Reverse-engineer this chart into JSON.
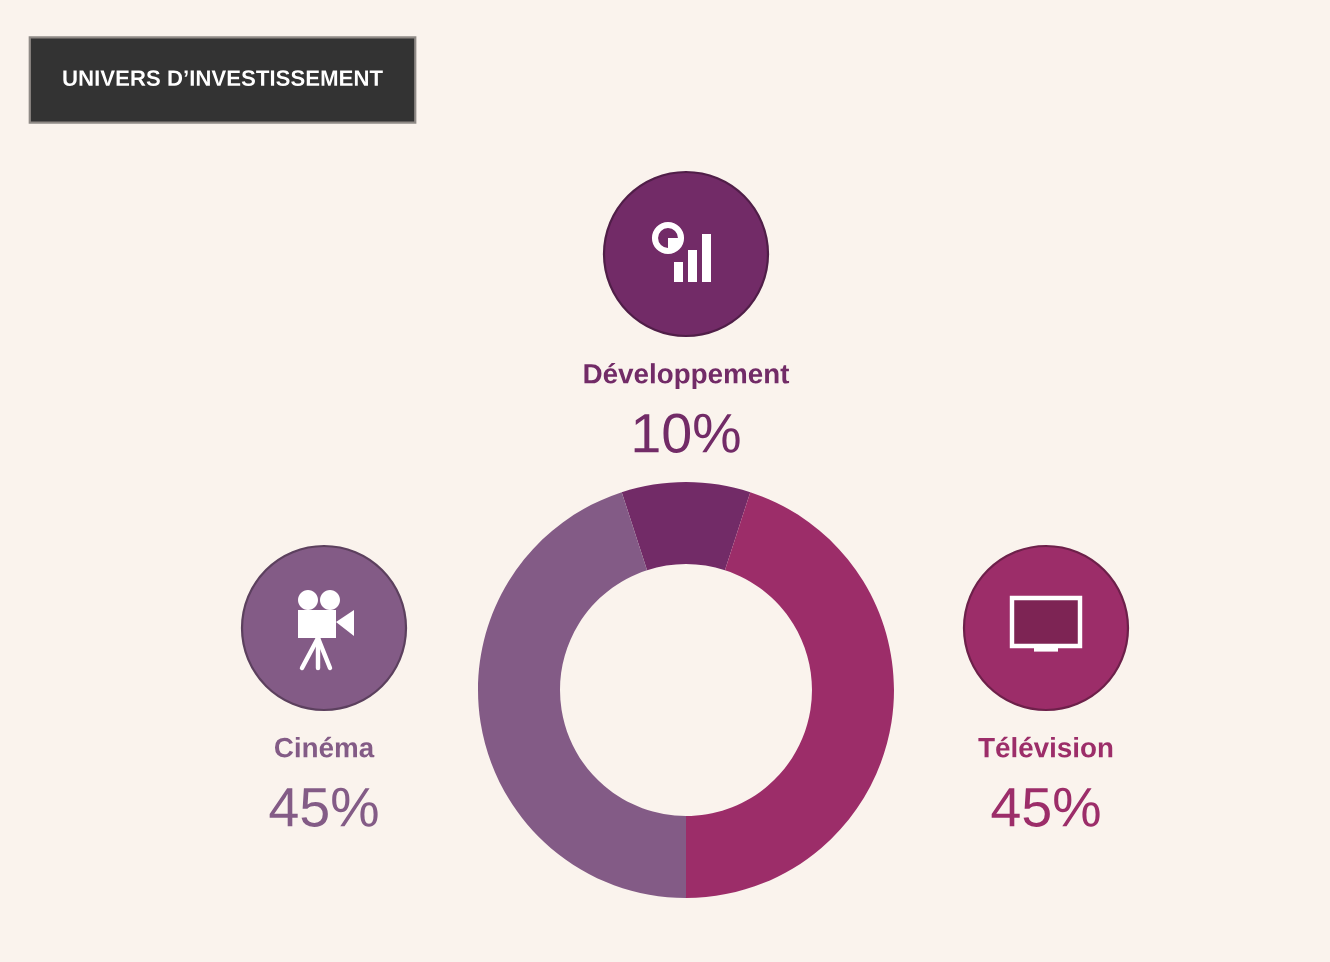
{
  "chart_data": {
    "type": "donut",
    "title": "UNIVERS D’INVESTISSEMENT",
    "categories": [
      "Développement",
      "Télévision",
      "Cinéma"
    ],
    "values": [
      10,
      45,
      45
    ],
    "value_labels": [
      "10%",
      "45%",
      "45%"
    ],
    "colors": [
      "#722b67",
      "#9c2d69",
      "#835b86"
    ]
  }
}
